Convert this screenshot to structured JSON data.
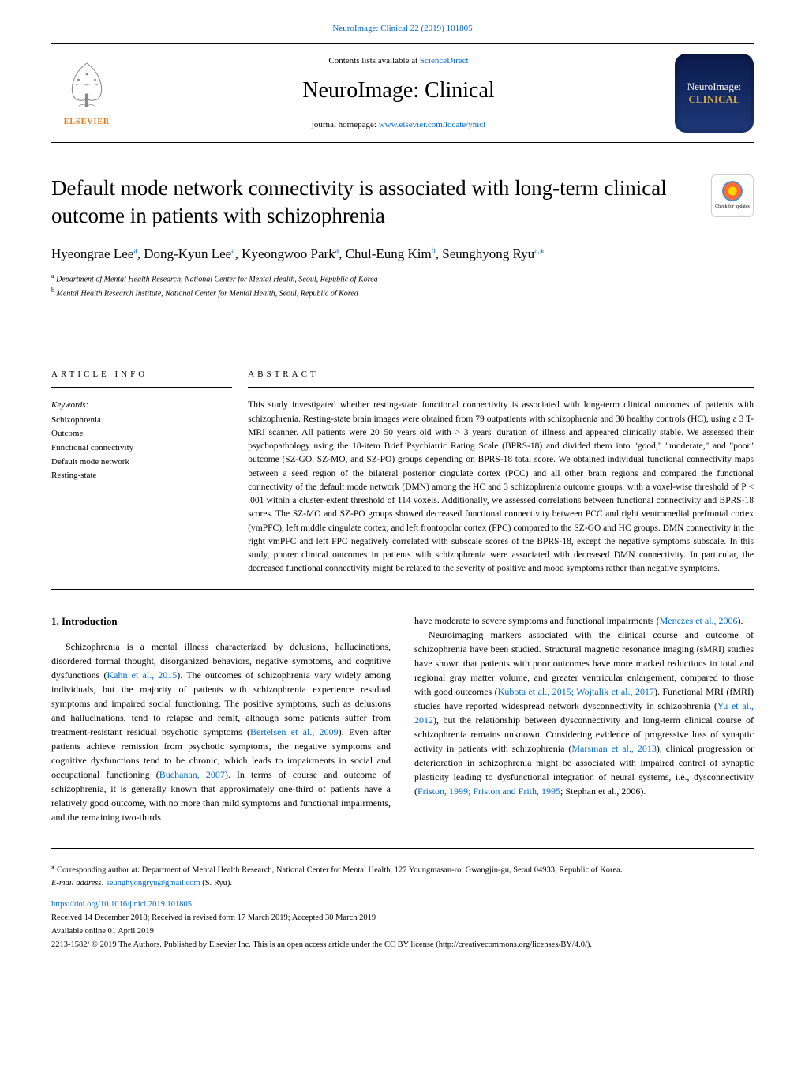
{
  "citation": {
    "journal": "NeuroImage: Clinical",
    "volume": "22 (2019) 101805"
  },
  "header": {
    "contents_text": "Contents lists available at ",
    "contents_link": "ScienceDirect",
    "journal_name": "NeuroImage: Clinical",
    "homepage_text": "journal homepage: ",
    "homepage_link": "www.elsevier.com/locate/ynicl",
    "elsevier": "ELSEVIER",
    "cover_line1": "NeuroImage:",
    "cover_line2": "CLINICAL",
    "check_updates": "Check for updates"
  },
  "article": {
    "title": "Default mode network connectivity is associated with long-term clinical outcome in patients with schizophrenia",
    "authors_html": "Hyeongrae Lee",
    "authors": [
      {
        "name": "Hyeongrae Lee",
        "sup": "a"
      },
      {
        "name": "Dong-Kyun Lee",
        "sup": "a"
      },
      {
        "name": "Kyeongwoo Park",
        "sup": "a"
      },
      {
        "name": "Chul-Eung Kim",
        "sup": "b"
      },
      {
        "name": "Seunghyong Ryu",
        "sup": "a,",
        "star": true
      }
    ],
    "affiliations": [
      {
        "sup": "a",
        "text": "Department of Mental Health Research, National Center for Mental Health, Seoul, Republic of Korea"
      },
      {
        "sup": "b",
        "text": "Mental Health Research Institute, National Center for Mental Health, Seoul, Republic of Korea"
      }
    ]
  },
  "info": {
    "header": "ARTICLE INFO",
    "keywords_label": "Keywords:",
    "keywords": [
      "Schizophrenia",
      "Outcome",
      "Functional connectivity",
      "Default mode network",
      "Resting-state"
    ]
  },
  "abstract": {
    "header": "ABSTRACT",
    "text": "This study investigated whether resting-state functional connectivity is associated with long-term clinical outcomes of patients with schizophrenia. Resting-state brain images were obtained from 79 outpatients with schizophrenia and 30 healthy controls (HC), using a 3 T-MRI scanner. All patients were 20–50 years old with > 3 years' duration of illness and appeared clinically stable. We assessed their psychopathology using the 18-item Brief Psychiatric Rating Scale (BPRS-18) and divided them into \"good,\" \"moderate,\" and \"poor\" outcome (SZ-GO, SZ-MO, and SZ-PO) groups depending on BPRS-18 total score. We obtained individual functional connectivity maps between a seed region of the bilateral posterior cingulate cortex (PCC) and all other brain regions and compared the functional connectivity of the default mode network (DMN) among the HC and 3 schizophrenia outcome groups, with a voxel-wise threshold of P < .001 within a cluster-extent threshold of 114 voxels. Additionally, we assessed correlations between functional connectivity and BPRS-18 scores. The SZ-MO and SZ-PO groups showed decreased functional connectivity between PCC and right ventromedial prefrontal cortex (vmPFC), left middle cingulate cortex, and left frontopolar cortex (FPC) compared to the SZ-GO and HC groups. DMN connectivity in the right vmPFC and left FPC negatively correlated with subscale scores of the BPRS-18, except the negative symptoms subscale. In this study, poorer clinical outcomes in patients with schizophrenia were associated with decreased DMN connectivity. In particular, the decreased functional connectivity might be related to the severity of positive and mood symptoms rather than negative symptoms."
  },
  "body": {
    "section1_title": "1. Introduction",
    "col1_p1": "Schizophrenia is a mental illness characterized by delusions, hallucinations, disordered formal thought, disorganized behaviors, negative symptoms, and cognitive dysfunctions (Kahn et al., 2015). The outcomes of schizophrenia vary widely among individuals, but the majority of patients with schizophrenia experience residual symptoms and impaired social functioning. The positive symptoms, such as delusions and hallucinations, tend to relapse and remit, although some patients suffer from treatment-resistant residual psychotic symptoms (Bertelsen et al., 2009). Even after patients achieve remission from psychotic symptoms, the negative symptoms and cognitive dysfunctions tend to be chronic, which leads to impairments in social and occupational functioning (Buchanan, 2007). In terms of course and outcome of schizophrenia, it is generally known that approximately one-third of patients have a relatively good outcome, with no more than mild symptoms and functional impairments, and the remaining two-thirds",
    "col2_p1": "have moderate to severe symptoms and functional impairments (Menezes et al., 2006).",
    "col2_p2": "Neuroimaging markers associated with the clinical course and outcome of schizophrenia have been studied. Structural magnetic resonance imaging (sMRI) studies have shown that patients with poor outcomes have more marked reductions in total and regional gray matter volume, and greater ventricular enlargement, compared to those with good outcomes (Kubota et al., 2015; Wojtalik et al., 2017). Functional MRI (fMRI) studies have reported widespread network dysconnectivity in schizophrenia (Yu et al., 2012), but the relationship between dysconnectivity and long-term clinical course of schizophrenia remains unknown. Considering evidence of progressive loss of synaptic activity in patients with schizophrenia (Marsman et al., 2013), clinical progression or deterioration in schizophrenia might be associated with impaired control of synaptic plasticity leading to dysfunctional integration of neural systems, i.e., dysconnectivity (Friston, 1999; Friston and Frith, 1995; Stephan et al., 2006)."
  },
  "footer": {
    "corr_text": "Corresponding author at: Department of Mental Health Research, National Center for Mental Health, 127 Youngmasan-ro, Gwangjin-gu, Seoul 04933, Republic of Korea.",
    "email_label": "E-mail address: ",
    "email": "seunghyongryu@gmail.com",
    "email_suffix": " (S. Ryu).",
    "doi": "https://doi.org/10.1016/j.nicl.2019.101805",
    "received": "Received 14 December 2018; Received in revised form 17 March 2019; Accepted 30 March 2019",
    "available": "Available online 01 April 2019",
    "copyright": "2213-1582/ © 2019 The Authors. Published by Elsevier Inc. This is an open access article under the CC BY license (http://creativecommons.org/licenses/BY/4.0/)."
  }
}
